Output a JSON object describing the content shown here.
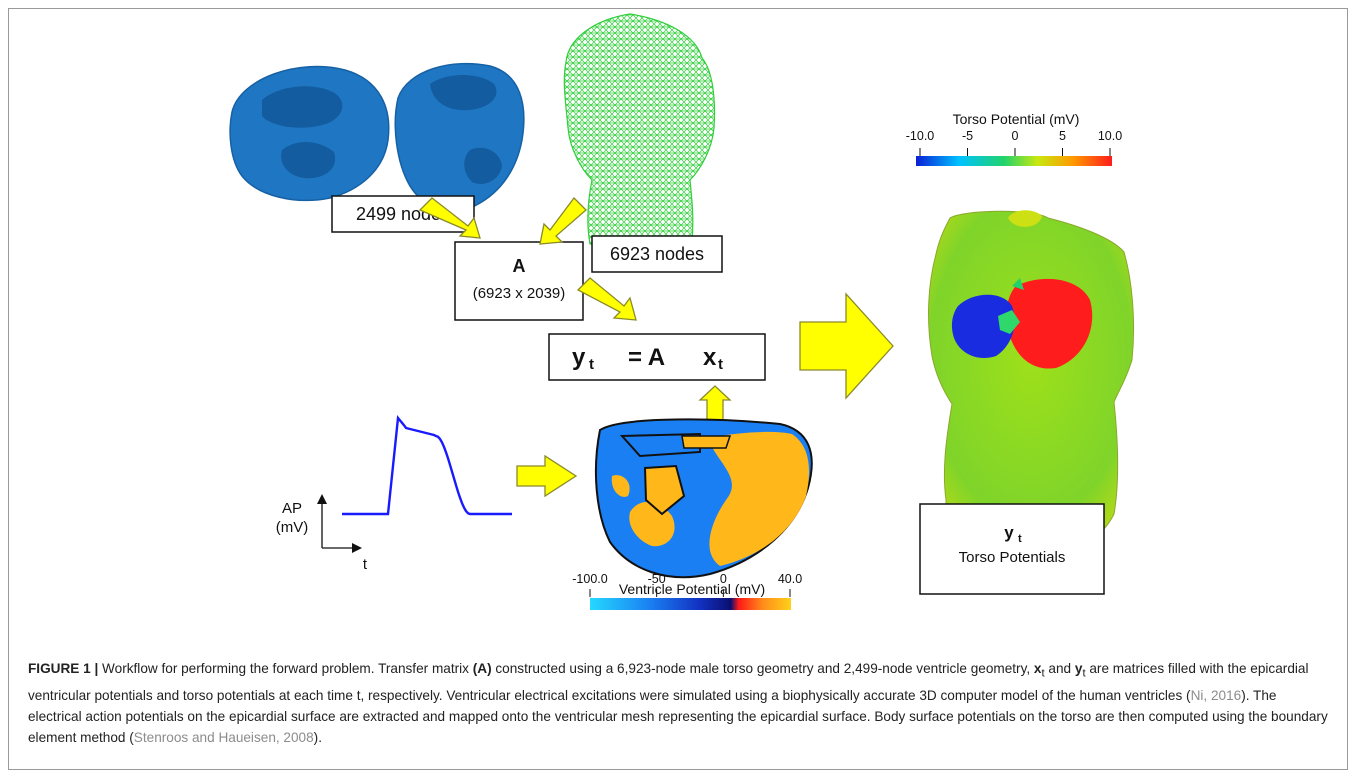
{
  "figure": {
    "nodes_ventricle": "2499 nodes",
    "nodes_torso": "6923 nodes",
    "matrix": {
      "symbol": "A",
      "dims": "(6923 x 2039)"
    },
    "equation": {
      "lhs": "y",
      "eq": "= A",
      "rhs": "x",
      "sub": "t"
    },
    "ap_axis": {
      "ylabel_line1": "AP",
      "ylabel_line2": "(mV)",
      "xlabel": "t"
    },
    "torso_colorbar": {
      "title": "Torso Potential (mV)",
      "ticks": [
        "-10.0",
        "-5",
        "0",
        "5",
        "10.0"
      ],
      "colors": [
        "#0a1fd6",
        "#00c2ff",
        "#22d36b",
        "#c8e80f",
        "#ff9a00",
        "#ff1c1c"
      ]
    },
    "ventricle_colorbar": {
      "title": "Ventricle Potential (mV)",
      "ticks": [
        "-100.0",
        "-50",
        "0",
        "40.0"
      ],
      "colors": [
        "#25d8ff",
        "#1a7ff2",
        "#1230c0",
        "#0a0f70",
        "#ff1a1a",
        "#ff8c1a",
        "#ffd21a"
      ]
    },
    "output_box": {
      "symbol": "y",
      "sub": "t",
      "label": "Torso Potentials"
    },
    "colors": {
      "ventricle_mesh": "#1f77c4",
      "torso_mesh": "#2fcf3a",
      "arrow_fill": "#ffff00",
      "arrow_stroke": "#8a8a2a",
      "ap_trace": "#1a1aff"
    }
  },
  "caption": {
    "label": "FIGURE 1 |",
    "t1": " Workflow for performing the forward problem. Transfer matrix ",
    "bold_a": "(A)",
    "t2": " constructed using a 6,923-node male torso geometry and 2,499-node ventricle geometry, ",
    "x_sym": "x",
    "t_and": " and ",
    "y_sym": "y",
    "sub_t": "t",
    "t3": " are matrices filled with the epicardial ventricular potentials and torso potentials at each time t, respectively. Ventricular electrical excitations were simulated using a biophysically accurate 3D computer model of the human ventricles (",
    "ref1": "Ni, 2016",
    "t4": "). The electrical action potentials on the epicardial surface are extracted and mapped onto the ventricular mesh representing the epicardial surface. Body surface potentials on the torso are then computed using the boundary element method (",
    "ref2": "Stenroos and Haueisen, 2008",
    "t5": ")."
  }
}
